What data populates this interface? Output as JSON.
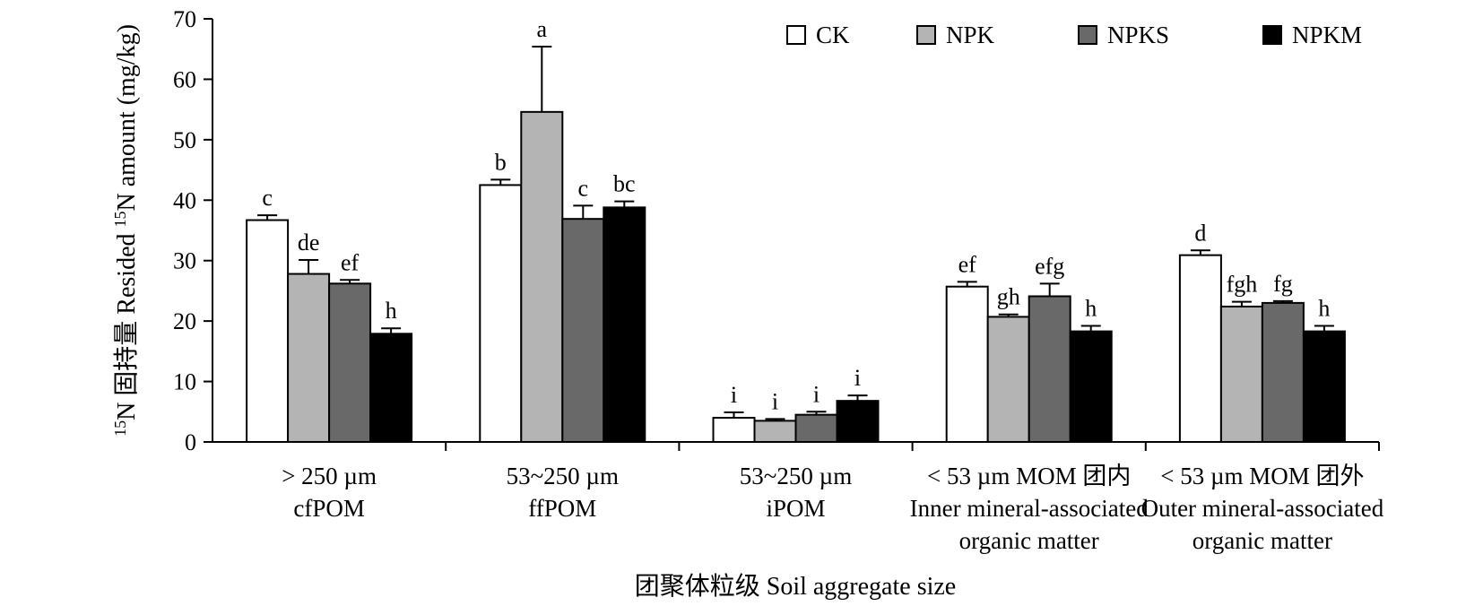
{
  "chart_data": {
    "type": "bar",
    "title": "",
    "ylabel_prefix": "15",
    "ylabel_main": "N 固持量 Resided ",
    "ylabel_sup2": "15",
    "ylabel_tail": "N amount (mg/kg)",
    "xlabel": "团聚体粒级 Soil aggregate size",
    "ylim": [
      0,
      70
    ],
    "yticks": [
      0,
      10,
      20,
      30,
      40,
      50,
      60,
      70
    ],
    "categories": [
      [
        "> 250 µm",
        "cfPOM"
      ],
      [
        "53~250 µm",
        "ffPOM"
      ],
      [
        "53~250 µm",
        "iPOM"
      ],
      [
        "< 53 µm MOM 团内",
        "Inner mineral-associated",
        "organic matter"
      ],
      [
        "< 53 µm MOM 团外",
        "Outer mineral-associated",
        "organic matter"
      ]
    ],
    "series": [
      {
        "name": "CK",
        "color": "#ffffff",
        "values": [
          36.7,
          42.5,
          4.0,
          25.7,
          30.9
        ],
        "errors": [
          0.8,
          0.9,
          0.9,
          0.8,
          0.8
        ],
        "labels": [
          "c",
          "b",
          "i",
          "ef",
          "d"
        ]
      },
      {
        "name": "NPK",
        "color": "#b4b4b4",
        "values": [
          27.8,
          54.6,
          3.5,
          20.7,
          22.4
        ],
        "errors": [
          2.3,
          10.8,
          0.3,
          0.4,
          0.8
        ],
        "labels": [
          "de",
          "a",
          "i",
          "gh",
          "fgh"
        ]
      },
      {
        "name": "NPKS",
        "color": "#696969",
        "values": [
          26.2,
          36.9,
          4.5,
          24.1,
          23.0
        ],
        "errors": [
          0.6,
          2.2,
          0.5,
          2.1,
          0.3
        ],
        "labels": [
          "ef",
          "c",
          "i",
          "efg",
          "fg"
        ]
      },
      {
        "name": "NPKM",
        "color": "#000000",
        "values": [
          17.9,
          38.8,
          6.8,
          18.3,
          18.3
        ],
        "errors": [
          0.9,
          1.0,
          0.9,
          0.9,
          0.9
        ],
        "labels": [
          "h",
          "bc",
          "i",
          "h",
          "h"
        ]
      }
    ],
    "legend_position": "top-right"
  }
}
